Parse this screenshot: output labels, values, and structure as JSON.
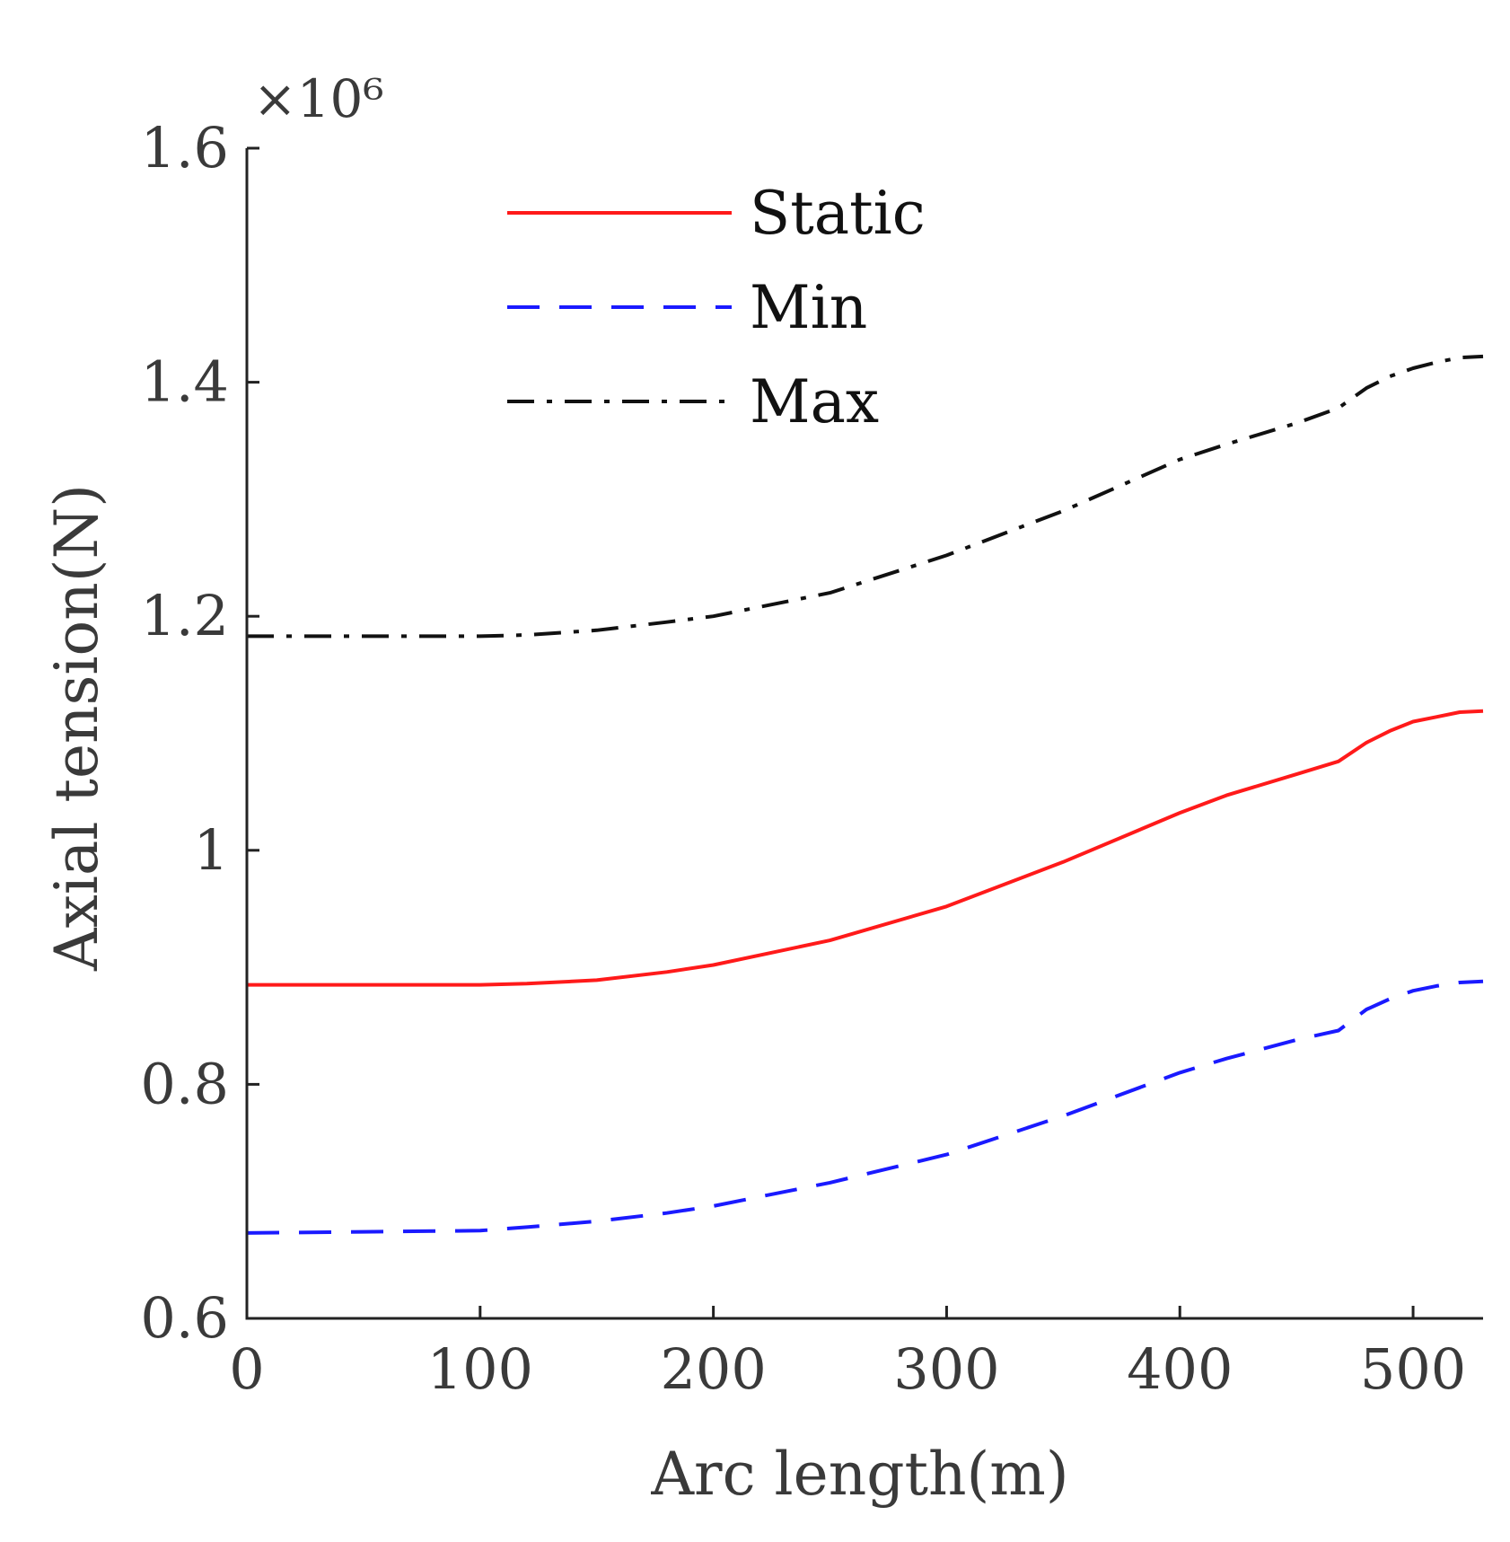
{
  "chart_data": {
    "type": "line",
    "title": "",
    "xlabel": "Arc length(m)",
    "ylabel": "Axial tension(N)",
    "y_exponent_label": "×10⁶",
    "xlim": [
      0,
      530
    ],
    "ylim": [
      0.6,
      1.6
    ],
    "xticks": [
      0,
      100,
      200,
      300,
      400,
      500
    ],
    "xtick_labels": [
      "0",
      "100",
      "200",
      "300",
      "400",
      "500"
    ],
    "yticks": [
      0.6,
      0.8,
      1.0,
      1.2,
      1.4,
      1.6
    ],
    "ytick_labels": [
      "0.6",
      "0.8",
      "1",
      "1.2",
      "1.4",
      "1.6"
    ],
    "grid": false,
    "legend_position": "top-center",
    "x": [
      0,
      50,
      100,
      120,
      150,
      180,
      200,
      250,
      300,
      350,
      400,
      420,
      450,
      468,
      480,
      490,
      500,
      510,
      520,
      530
    ],
    "series": [
      {
        "name": "Static",
        "color": "#ff1a1a",
        "style": "solid",
        "values": [
          0.885,
          0.885,
          0.885,
          0.886,
          0.889,
          0.896,
          0.902,
          0.923,
          0.952,
          0.99,
          1.032,
          1.047,
          1.065,
          1.076,
          1.092,
          1.102,
          1.11,
          1.114,
          1.118,
          1.119
        ]
      },
      {
        "name": "Min",
        "color": "#1a1aff",
        "style": "dashed",
        "values": [
          0.673,
          0.674,
          0.675,
          0.678,
          0.683,
          0.69,
          0.696,
          0.716,
          0.74,
          0.773,
          0.81,
          0.822,
          0.838,
          0.846,
          0.864,
          0.873,
          0.88,
          0.884,
          0.887,
          0.888
        ]
      },
      {
        "name": "Max",
        "color": "#111111",
        "style": "dashdot",
        "values": [
          1.183,
          1.183,
          1.183,
          1.184,
          1.188,
          1.195,
          1.2,
          1.22,
          1.252,
          1.29,
          1.334,
          1.347,
          1.365,
          1.378,
          1.395,
          1.405,
          1.412,
          1.417,
          1.421,
          1.422
        ]
      }
    ]
  }
}
